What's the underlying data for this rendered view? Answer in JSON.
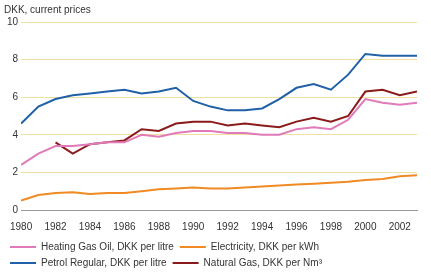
{
  "chart_data": {
    "type": "line",
    "y_label": "DKK, current prices",
    "x": [
      1980,
      1981,
      1982,
      1983,
      1984,
      1985,
      1986,
      1987,
      1988,
      1989,
      1990,
      1991,
      1992,
      1993,
      1994,
      1995,
      1996,
      1997,
      1998,
      1999,
      2000,
      2001,
      2002,
      2003
    ],
    "series": [
      {
        "name": "Heating Gas Oil, DKK per litre",
        "color": "#e07ab8",
        "values": [
          2.4,
          3.0,
          3.4,
          3.4,
          3.5,
          3.6,
          3.6,
          4.0,
          3.9,
          4.1,
          4.2,
          4.2,
          4.1,
          4.1,
          4.0,
          4.0,
          4.3,
          4.4,
          4.3,
          4.8,
          5.9,
          5.7,
          5.6,
          5.7
        ]
      },
      {
        "name": "Electricity, DKK per kWh",
        "color": "#f08a24",
        "values": [
          0.5,
          0.8,
          0.9,
          0.95,
          0.85,
          0.9,
          0.9,
          1.0,
          1.1,
          1.15,
          1.2,
          1.15,
          1.15,
          1.2,
          1.25,
          1.3,
          1.35,
          1.4,
          1.45,
          1.5,
          1.6,
          1.65,
          1.8,
          1.85
        ]
      },
      {
        "name": "Petrol Regular, DKK per litre",
        "color": "#2060a8",
        "values": [
          4.6,
          5.5,
          5.9,
          6.1,
          6.2,
          6.3,
          6.4,
          6.2,
          6.3,
          6.5,
          5.8,
          5.5,
          5.3,
          5.3,
          5.4,
          5.9,
          6.5,
          6.7,
          6.4,
          7.2,
          8.3,
          8.2,
          8.2,
          8.2
        ]
      },
      {
        "name": "Natural Gas, DKK per Nm³",
        "color": "#8b1a1a",
        "values": [
          null,
          null,
          3.6,
          3.0,
          3.5,
          3.6,
          3.7,
          4.3,
          4.2,
          4.6,
          4.7,
          4.7,
          4.5,
          4.6,
          4.5,
          4.4,
          4.7,
          4.9,
          4.7,
          5.0,
          6.3,
          6.4,
          6.1,
          6.3
        ]
      }
    ],
    "xlim": [
      1980,
      2003
    ],
    "xticks": [
      1980,
      1982,
      1984,
      1986,
      1988,
      1990,
      1992,
      1994,
      1996,
      1998,
      2000,
      2002
    ],
    "ylim": [
      0,
      10
    ],
    "yticks": [
      0,
      2,
      4,
      6,
      8,
      10
    ],
    "grid": true,
    "legend": "bottom"
  }
}
